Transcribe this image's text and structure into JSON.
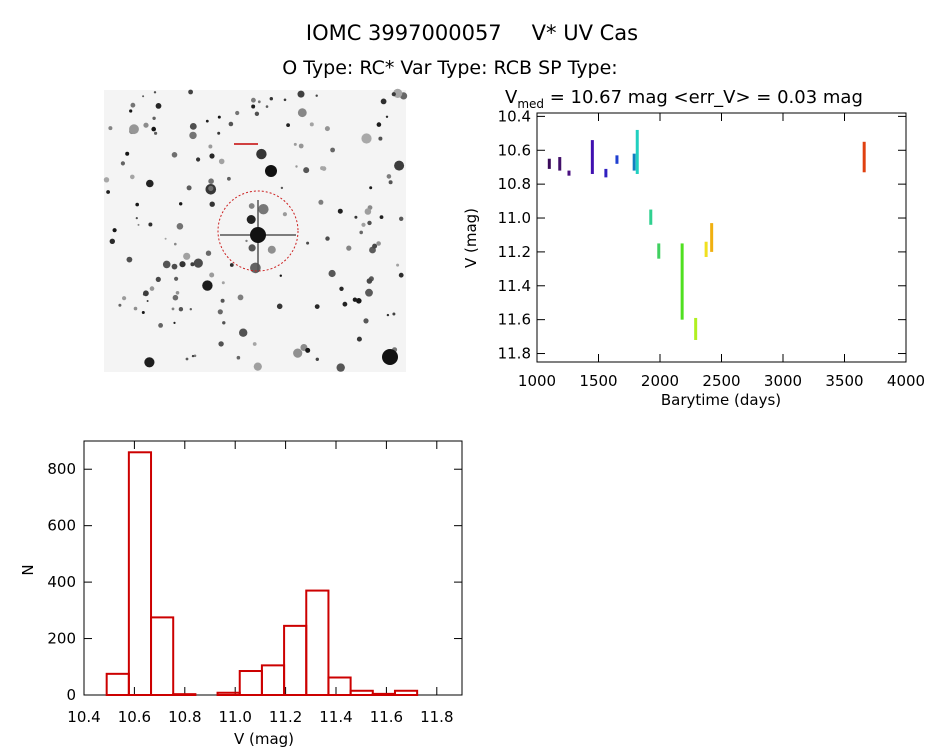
{
  "header": {
    "title_id": "IOMC 3997000057",
    "title_name": "V* UV Cas",
    "subtitle": "O Type: RC*  Var Type: RCB  SP Type:"
  },
  "chart_data": [
    {
      "type": "image",
      "description_label": "finder chart"
    },
    {
      "type": "scatter",
      "title": "V",
      "title_sub": "med",
      "title_rest": " = 10.67 mag <err_V> = 0.03 mag",
      "xlabel": "Barytime (days)",
      "ylabel": "V (mag)",
      "xlim": [
        1000,
        4000
      ],
      "ylim": [
        11.85,
        10.38
      ],
      "y_inverted": true,
      "xticks": [
        "1000",
        "1500",
        "2000",
        "2500",
        "3000",
        "3500",
        "4000"
      ],
      "yticks": [
        "10.4",
        "10.6",
        "10.8",
        "11.0",
        "11.2",
        "11.4",
        "11.6",
        "11.8"
      ],
      "clusters": [
        {
          "x": 1100,
          "y_min": 10.65,
          "y_max": 10.71,
          "color": "#3a0a5a"
        },
        {
          "x": 1185,
          "y_min": 10.64,
          "y_max": 10.72,
          "color": "#42106a"
        },
        {
          "x": 1260,
          "y_min": 10.72,
          "y_max": 10.75,
          "color": "#4a1080"
        },
        {
          "x": 1450,
          "y_min": 10.54,
          "y_max": 10.74,
          "color": "#4010b0"
        },
        {
          "x": 1560,
          "y_min": 10.71,
          "y_max": 10.76,
          "color": "#3020c0"
        },
        {
          "x": 1650,
          "y_min": 10.63,
          "y_max": 10.68,
          "color": "#2040d0"
        },
        {
          "x": 1790,
          "y_min": 10.62,
          "y_max": 10.72,
          "color": "#1080c0"
        },
        {
          "x": 1815,
          "y_min": 10.48,
          "y_max": 10.74,
          "color": "#20d0c0"
        },
        {
          "x": 1925,
          "y_min": 10.95,
          "y_max": 11.04,
          "color": "#30d090"
        },
        {
          "x": 1990,
          "y_min": 11.15,
          "y_max": 11.24,
          "color": "#40d060"
        },
        {
          "x": 2180,
          "y_min": 11.15,
          "y_max": 11.6,
          "color": "#50e020"
        },
        {
          "x": 2290,
          "y_min": 11.59,
          "y_max": 11.72,
          "color": "#b0f020"
        },
        {
          "x": 2375,
          "y_min": 11.14,
          "y_max": 11.23,
          "color": "#f0e020"
        },
        {
          "x": 2420,
          "y_min": 11.03,
          "y_max": 11.2,
          "color": "#f0b010"
        },
        {
          "x": 3660,
          "y_min": 10.55,
          "y_max": 10.73,
          "color": "#e04010"
        }
      ]
    },
    {
      "type": "bar",
      "subtype": "histogram",
      "xlabel": "V (mag)",
      "ylabel": "N",
      "xlim": [
        10.4,
        11.9
      ],
      "ylim": [
        0,
        900
      ],
      "xticks": [
        "10.4",
        "10.6",
        "10.8",
        "11.0",
        "11.2",
        "11.4",
        "11.6",
        "11.8"
      ],
      "yticks": [
        "0",
        "200",
        "400",
        "600",
        "800"
      ],
      "bin_start": 10.49,
      "bin_width": 0.088,
      "values": [
        75,
        860,
        275,
        3,
        0,
        8,
        85,
        105,
        245,
        370,
        62,
        15,
        4,
        15
      ],
      "color": "#cc0000"
    }
  ]
}
